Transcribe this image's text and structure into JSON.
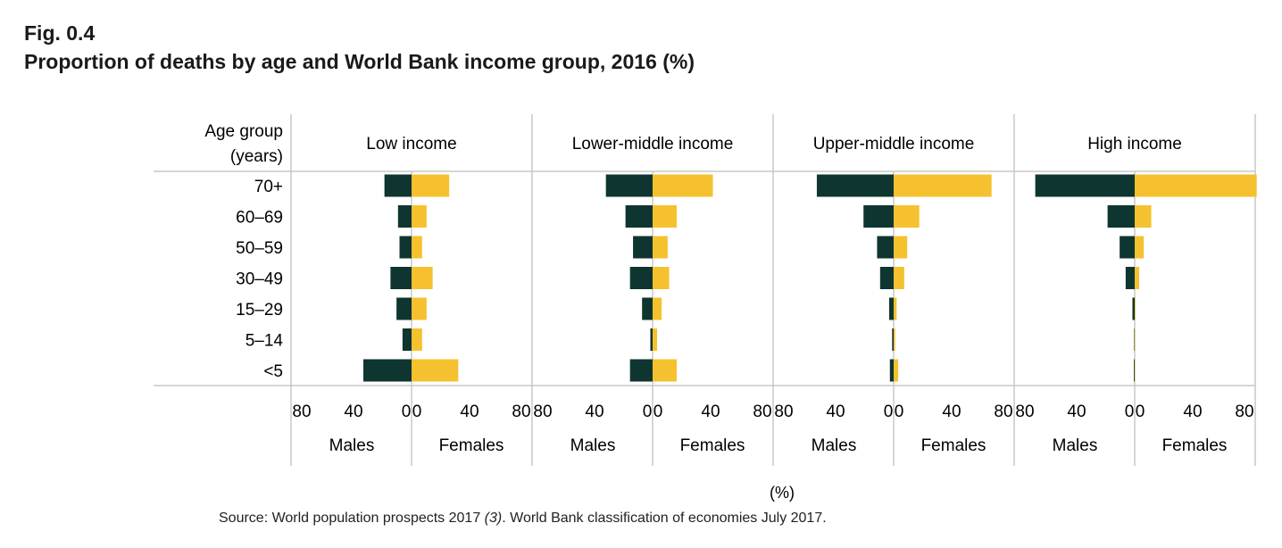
{
  "figure": {
    "label": "Fig. 0.4",
    "title": "Proportion of deaths by age and World Bank income group, 2016 (%)"
  },
  "source": {
    "prefix": "Source: World population prospects 2017",
    "ref": "(3)",
    "suffix": ". World Bank classification of economies July 2017."
  },
  "colors": {
    "males": "#0f3530",
    "females": "#f6c12f",
    "grid": "#c8c8c8"
  },
  "chart_data": {
    "type": "bar",
    "orientation": "horizontal-diverging",
    "row_header_line1": "Age group",
    "row_header_line2": "(years)",
    "categories": [
      "70+",
      "60–69",
      "50–59",
      "30–49",
      "15–29",
      "5–14",
      "<5"
    ],
    "x_ticks": [
      80,
      40,
      0,
      40,
      80
    ],
    "xlim": [
      -80,
      80
    ],
    "side_labels": {
      "left": "Males",
      "right": "Females"
    },
    "xlabel": "(%)",
    "panels": [
      {
        "title": "Low income",
        "series": [
          {
            "name": "Males",
            "values": [
              18,
              9,
              8,
              14,
              10,
              6,
              32
            ]
          },
          {
            "name": "Females",
            "values": [
              25,
              10,
              7,
              14,
              10,
              7,
              31
            ]
          }
        ]
      },
      {
        "title": "Lower-middle income",
        "series": [
          {
            "name": "Males",
            "values": [
              31,
              18,
              13,
              15,
              7,
              1.5,
              15
            ]
          },
          {
            "name": "Females",
            "values": [
              40,
              16,
              10,
              11,
              6,
              3,
              16
            ]
          }
        ]
      },
      {
        "title": "Upper-middle income",
        "series": [
          {
            "name": "Males",
            "values": [
              51,
              20,
              11,
              9,
              3,
              1,
              2.5
            ]
          },
          {
            "name": "Females",
            "values": [
              65,
              17,
              9,
              7,
              2,
              1,
              3
            ]
          }
        ]
      },
      {
        "title": "High income",
        "series": [
          {
            "name": "Males",
            "values": [
              66,
              18,
              10,
              6,
              1.5,
              0.3,
              0.5
            ]
          },
          {
            "name": "Females",
            "values": [
              81,
              11,
              6,
              3,
              0.5,
              0.3,
              0.3
            ]
          }
        ]
      }
    ]
  }
}
